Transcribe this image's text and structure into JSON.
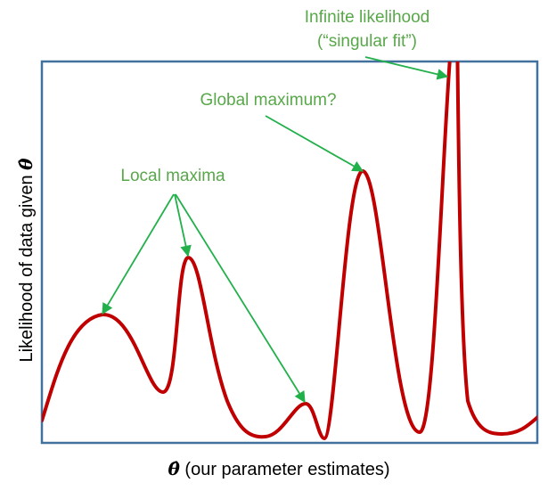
{
  "annotations": {
    "infinite_likelihood": "Infinite likelihood",
    "singular_fit": "(“singular fit”)",
    "global_maximum": "Global maximum?",
    "local_maxima": "Local maxima"
  },
  "axes": {
    "x_label_symbol": "θ̂",
    "x_label_text": "(our parameter estimates)",
    "y_label_text": "Likelihood of data given",
    "y_label_symbol": "θ̂"
  },
  "colors": {
    "curve": "#c00000",
    "frame": "#41719c",
    "annotation": "#58a84a",
    "arrow": "#22b04b"
  }
}
